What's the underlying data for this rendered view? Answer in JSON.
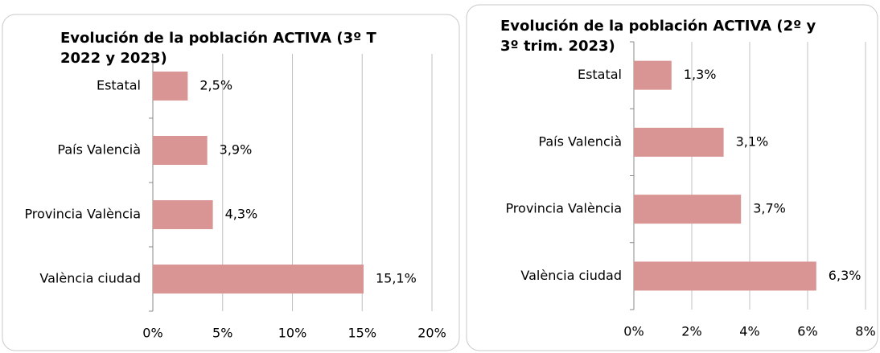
{
  "chart_data": [
    {
      "type": "hbar",
      "title": "Evolución de la población ACTIVA (3º T 2022 y 2023)",
      "categories": [
        "Estatal",
        "País Valencià",
        "Provincia València",
        "València ciudad"
      ],
      "values": [
        2.5,
        3.9,
        4.3,
        15.1
      ],
      "value_labels": [
        "2,5%",
        "3,9%",
        "4,3%",
        "15,1%"
      ],
      "color": "#d99594",
      "xlim": [
        0,
        20
      ],
      "xticks": [
        {
          "value": 0,
          "label": "0%"
        },
        {
          "value": 5,
          "label": "5%"
        },
        {
          "value": 10,
          "label": "10%"
        },
        {
          "value": 15,
          "label": "15%"
        },
        {
          "value": 20,
          "label": "20%"
        }
      ],
      "grid": true
    },
    {
      "type": "hbar",
      "title": "Evolución de la población ACTIVA (2º y 3º trim. 2023)",
      "categories": [
        "Estatal",
        "País Valencià",
        "Provincia València",
        "València ciudad"
      ],
      "values": [
        1.3,
        3.1,
        3.7,
        6.3
      ],
      "value_labels": [
        "1,3%",
        "3,1%",
        "3,7%",
        "6,3%"
      ],
      "color": "#d99594",
      "xlim": [
        0,
        8
      ],
      "xticks": [
        {
          "value": 0,
          "label": "0%"
        },
        {
          "value": 2,
          "label": "2%"
        },
        {
          "value": 4,
          "label": "4%"
        },
        {
          "value": 6,
          "label": "6%"
        },
        {
          "value": 8,
          "label": "8%"
        }
      ],
      "grid": true
    }
  ]
}
